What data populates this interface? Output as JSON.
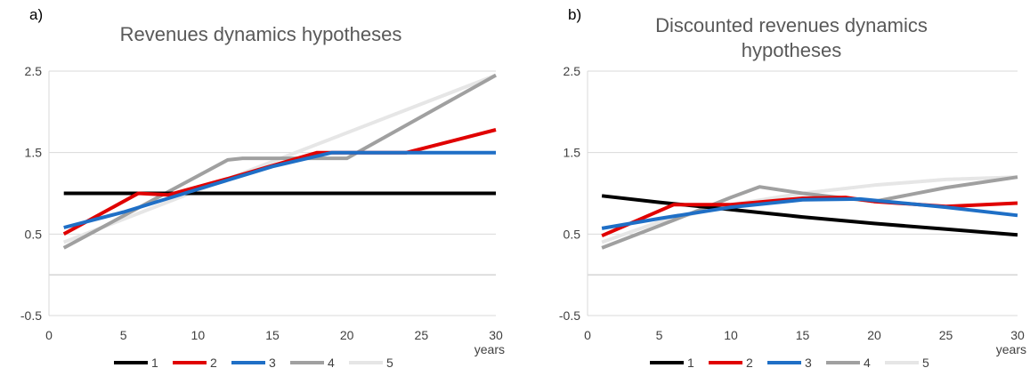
{
  "colors": {
    "1": "#000000",
    "2": "#e00000",
    "3": "#1f6fc6",
    "4": "#a0a0a0",
    "5": "#e6e6e6"
  },
  "chart_data": [
    {
      "type": "line",
      "panel": "a)",
      "title": "Revenues dynamics hypotheses",
      "xlabel": "years",
      "ylabel": "",
      "xlim": [
        0,
        30
      ],
      "ylim": [
        -0.5,
        2.5
      ],
      "xticks": [
        "0",
        "5",
        "10",
        "15",
        "20",
        "25",
        "30"
      ],
      "yticks": [
        "-0.5",
        "0.5",
        "1.5",
        "2.5"
      ],
      "grid": true,
      "legend": "bottom",
      "series": [
        {
          "name": "1",
          "x": [
            1,
            30
          ],
          "y": [
            1.0,
            1.0
          ]
        },
        {
          "name": "2",
          "x": [
            1,
            6,
            8,
            12,
            18,
            24,
            30
          ],
          "y": [
            0.5,
            1.0,
            0.98,
            1.18,
            1.5,
            1.5,
            1.78
          ]
        },
        {
          "name": "3",
          "x": [
            1,
            5,
            10,
            15,
            19,
            25,
            30
          ],
          "y": [
            0.58,
            0.77,
            1.05,
            1.33,
            1.5,
            1.5,
            1.5
          ]
        },
        {
          "name": "4",
          "x": [
            1,
            12,
            13,
            19,
            20,
            30
          ],
          "y": [
            0.33,
            1.41,
            1.43,
            1.43,
            1.43,
            2.45
          ]
        },
        {
          "name": "5",
          "x": [
            1,
            30
          ],
          "y": [
            0.4,
            2.45
          ]
        }
      ]
    },
    {
      "type": "line",
      "panel": "b)",
      "title": "Discounted revenues dynamics hypotheses",
      "xlabel": "years",
      "ylabel": "",
      "xlim": [
        0,
        30
      ],
      "ylim": [
        -0.5,
        2.5
      ],
      "xticks": [
        "0",
        "5",
        "10",
        "15",
        "20",
        "25",
        "30"
      ],
      "yticks": [
        "-0.5",
        "0.5",
        "1.5",
        "2.5"
      ],
      "grid": true,
      "legend": "bottom",
      "series": [
        {
          "name": "1",
          "x": [
            1,
            5,
            10,
            15,
            20,
            25,
            30
          ],
          "y": [
            0.97,
            0.89,
            0.8,
            0.71,
            0.63,
            0.56,
            0.49
          ]
        },
        {
          "name": "2",
          "x": [
            1,
            6,
            10,
            15,
            18,
            20,
            25,
            30
          ],
          "y": [
            0.48,
            0.86,
            0.86,
            0.94,
            0.95,
            0.9,
            0.84,
            0.88
          ]
        },
        {
          "name": "3",
          "x": [
            1,
            5,
            10,
            15,
            19,
            25,
            30
          ],
          "y": [
            0.57,
            0.69,
            0.83,
            0.92,
            0.93,
            0.83,
            0.73
          ]
        },
        {
          "name": "4",
          "x": [
            1,
            6,
            10,
            12,
            15,
            20,
            25,
            30
          ],
          "y": [
            0.33,
            0.67,
            0.95,
            1.08,
            1.0,
            0.9,
            1.07,
            1.2
          ]
        },
        {
          "name": "5",
          "x": [
            1,
            5,
            10,
            15,
            20,
            25,
            30
          ],
          "y": [
            0.4,
            0.65,
            0.86,
            1.0,
            1.1,
            1.17,
            1.2
          ]
        }
      ]
    }
  ]
}
